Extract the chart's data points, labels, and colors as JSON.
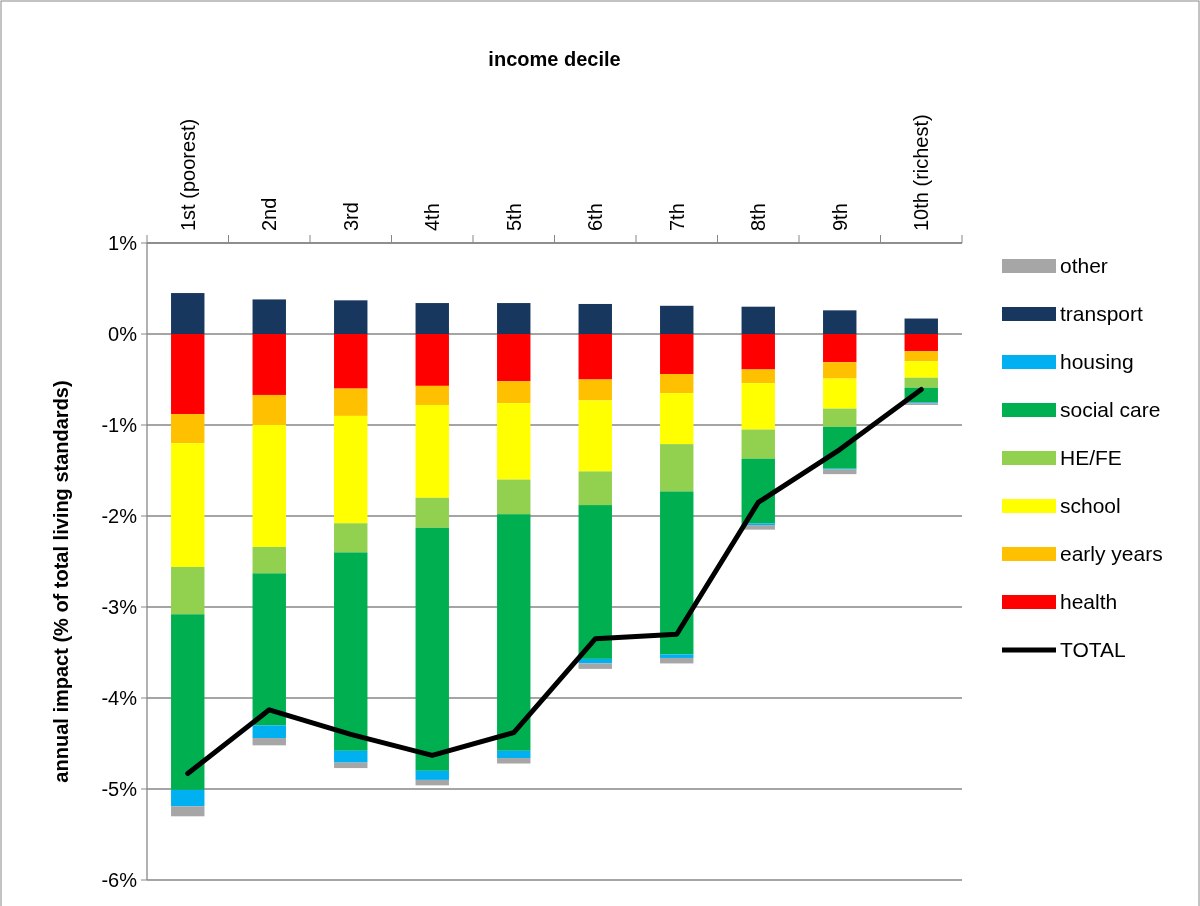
{
  "chart_data": {
    "type": "bar",
    "stacked": true,
    "xlabel": "income decile",
    "ylabel": "annual impact (% of total living standards)",
    "categories": [
      "1st (poorest)",
      "2nd",
      "3rd",
      "4th",
      "5th",
      "6th",
      "7th",
      "8th",
      "9th",
      "10th (richest)"
    ],
    "ylim": [
      -6,
      1
    ],
    "yticks": [
      {
        "value": -6,
        "label": "-6%"
      },
      {
        "value": -5,
        "label": "-5%"
      },
      {
        "value": -4,
        "label": "-4%"
      },
      {
        "value": -3,
        "label": "-3%"
      },
      {
        "value": -2,
        "label": "-2%"
      },
      {
        "value": -1,
        "label": "-1%"
      },
      {
        "value": 0,
        "label": "0%"
      },
      {
        "value": 1,
        "label": "1%"
      }
    ],
    "grid": "y",
    "legend": "right",
    "marker": "none",
    "series": [
      {
        "name": "health",
        "color": "#ff0000",
        "values": [
          -0.88,
          -0.67,
          -0.6,
          -0.57,
          -0.52,
          -0.5,
          -0.44,
          -0.39,
          -0.31,
          -0.19
        ]
      },
      {
        "name": "early years",
        "color": "#ffc000",
        "values": [
          -0.32,
          -0.33,
          -0.3,
          -0.21,
          -0.24,
          -0.23,
          -0.21,
          -0.15,
          -0.18,
          -0.11
        ]
      },
      {
        "name": "school",
        "color": "#ffff00",
        "values": [
          -1.36,
          -1.34,
          -1.18,
          -1.02,
          -0.84,
          -0.78,
          -0.56,
          -0.51,
          -0.33,
          -0.18
        ]
      },
      {
        "name": "HE/FE",
        "color": "#92d050",
        "values": [
          -0.52,
          -0.29,
          -0.32,
          -0.33,
          -0.38,
          -0.37,
          -0.52,
          -0.32,
          -0.2,
          -0.11
        ]
      },
      {
        "name": "social care",
        "color": "#00b050",
        "values": [
          -1.93,
          -1.67,
          -2.18,
          -2.67,
          -2.6,
          -1.69,
          -1.79,
          -0.71,
          -0.46,
          -0.16
        ]
      },
      {
        "name": "housing",
        "color": "#00b0f0",
        "values": [
          -0.18,
          -0.14,
          -0.13,
          -0.1,
          -0.08,
          -0.05,
          -0.04,
          -0.02,
          -0.01,
          -0.01
        ]
      },
      {
        "name": "transport",
        "color": "#17375e",
        "values": [
          0.45,
          0.38,
          0.37,
          0.34,
          0.34,
          0.33,
          0.31,
          0.3,
          0.26,
          0.17
        ]
      },
      {
        "name": "other",
        "color": "#a6a6a6",
        "values": [
          -0.11,
          -0.08,
          -0.06,
          -0.06,
          -0.06,
          -0.06,
          -0.06,
          -0.05,
          -0.05,
          -0.02
        ]
      },
      {
        "name": "TOTAL",
        "type": "line",
        "color": "#000000",
        "values": [
          -4.83,
          -4.13,
          -4.4,
          -4.63,
          -4.38,
          -3.35,
          -3.3,
          -1.85,
          -1.27,
          -0.61
        ]
      }
    ]
  }
}
